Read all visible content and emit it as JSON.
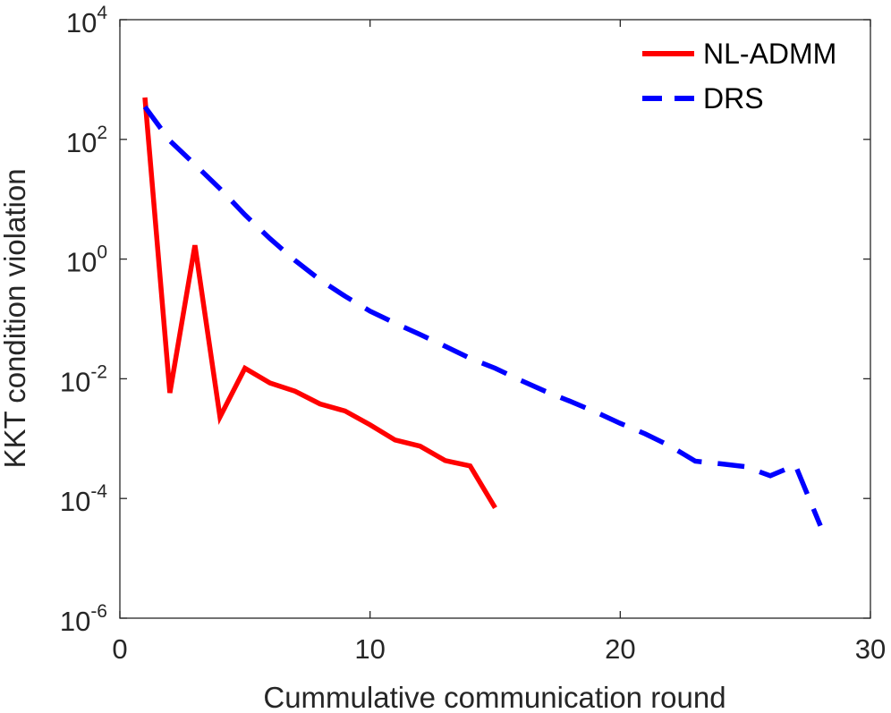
{
  "chart_data": {
    "type": "line",
    "title": "",
    "xlabel": "Cummulative communication round",
    "ylabel": "KKT condition violation",
    "xlim": [
      0,
      30
    ],
    "ylim": [
      1e-06,
      10000.0
    ],
    "yscale": "log",
    "grid": false,
    "legend_position": "top-right",
    "x_ticks": [
      0,
      10,
      20,
      30
    ],
    "y_ticks": [
      {
        "base": "10",
        "exp": "-6",
        "value": 1e-06
      },
      {
        "base": "10",
        "exp": "-4",
        "value": 0.0001
      },
      {
        "base": "10",
        "exp": "-2",
        "value": 0.01
      },
      {
        "base": "10",
        "exp": "0",
        "value": 1
      },
      {
        "base": "10",
        "exp": "2",
        "value": 100
      },
      {
        "base": "10",
        "exp": "4",
        "value": 10000
      }
    ],
    "series": [
      {
        "name": "NL-ADMM",
        "color": "#ff0000",
        "style": "solid",
        "x": [
          1,
          2,
          3,
          4,
          5,
          6,
          7,
          8,
          9,
          10,
          11,
          12,
          13,
          14,
          15
        ],
        "y": [
          500,
          0.0058,
          1.7,
          0.0023,
          0.015,
          0.0085,
          0.0062,
          0.0038,
          0.0029,
          0.0017,
          0.00095,
          0.00075,
          0.00043,
          0.00035,
          7e-05
        ]
      },
      {
        "name": "DRS",
        "color": "#0000ff",
        "style": "dashed",
        "x": [
          1,
          2,
          3,
          4,
          5,
          6,
          7,
          8,
          9,
          10,
          11,
          12,
          13,
          14,
          15,
          16,
          17,
          18,
          19,
          20,
          21,
          22,
          23,
          24,
          25,
          26,
          27,
          28
        ],
        "y": [
          350,
          95,
          38,
          15,
          5.5,
          2.2,
          0.95,
          0.45,
          0.24,
          0.135,
          0.085,
          0.055,
          0.035,
          0.022,
          0.015,
          0.0095,
          0.0062,
          0.0042,
          0.0028,
          0.0018,
          0.0012,
          0.00075,
          0.00042,
          0.00038,
          0.00034,
          0.00024,
          0.00036,
          3.5e-05
        ]
      }
    ]
  }
}
